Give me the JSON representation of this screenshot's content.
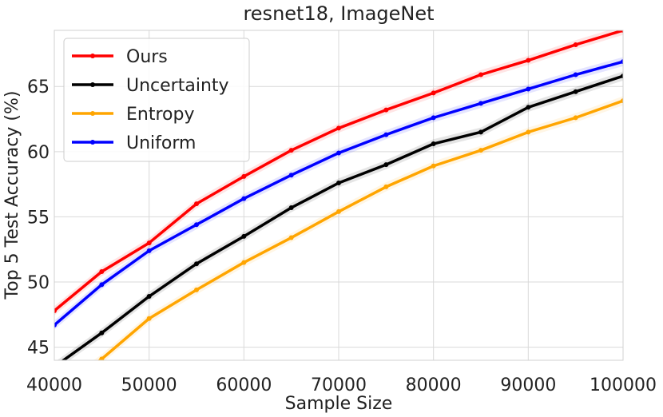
{
  "chart_data": {
    "type": "line",
    "title": "resnet18, ImageNet",
    "xlabel": "Sample Size",
    "ylabel": "Top 5 Test Accuracy (%)",
    "xlim": [
      40000,
      100000
    ],
    "ylim": [
      44,
      69.3
    ],
    "xticks": [
      40000,
      50000,
      60000,
      70000,
      80000,
      90000,
      100000
    ],
    "yticks": [
      45,
      50,
      55,
      60,
      65
    ],
    "grid": true,
    "legend_position": "top-left",
    "x": [
      40000,
      45000,
      50000,
      55000,
      60000,
      65000,
      70000,
      75000,
      80000,
      85000,
      90000,
      95000,
      100000
    ],
    "series": [
      {
        "name": "Ours",
        "color": "#ff0000",
        "values": [
          47.8,
          50.8,
          53.0,
          56.0,
          58.1,
          60.1,
          61.8,
          63.2,
          64.5,
          65.9,
          67.0,
          68.2,
          69.3
        ]
      },
      {
        "name": "Uncertainty",
        "color": "#000000",
        "values": [
          43.5,
          46.1,
          48.9,
          51.4,
          53.5,
          55.7,
          57.6,
          59.0,
          60.6,
          61.5,
          63.4,
          64.6,
          65.8
        ]
      },
      {
        "name": "Entropy",
        "color": "#ffa500",
        "values": [
          41.5,
          44.1,
          47.2,
          49.4,
          51.5,
          53.4,
          55.4,
          57.3,
          58.9,
          60.1,
          61.5,
          62.6,
          63.9
        ]
      },
      {
        "name": "Uniform",
        "color": "#0000ff",
        "values": [
          46.7,
          49.8,
          52.4,
          54.4,
          56.4,
          58.2,
          59.9,
          61.3,
          62.6,
          63.7,
          64.8,
          65.9,
          66.9
        ]
      }
    ]
  }
}
